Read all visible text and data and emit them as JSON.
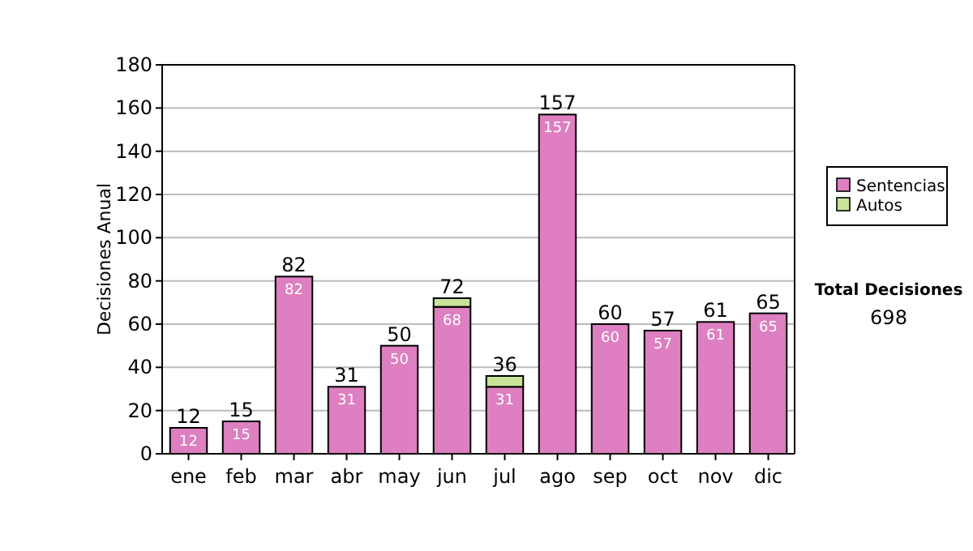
{
  "chart_data": {
    "type": "bar",
    "stacked": true,
    "ylabel": "Decisiones Anual",
    "categories": [
      "ene",
      "feb",
      "mar",
      "abr",
      "may",
      "jun",
      "jul",
      "ago",
      "sep",
      "oct",
      "nov",
      "dic"
    ],
    "series": [
      {
        "name": "Sentencias",
        "color": "#dd7fc0",
        "values": [
          12,
          15,
          82,
          31,
          50,
          68,
          31,
          157,
          60,
          57,
          61,
          65
        ],
        "value_labels": [
          "12",
          "15",
          "82",
          "31",
          "50",
          "68",
          "31",
          "157",
          "60",
          "57",
          "61",
          "65"
        ]
      },
      {
        "name": "Autos",
        "color": "#c7e39a",
        "values": [
          null,
          null,
          null,
          null,
          null,
          4,
          5,
          null,
          null,
          null,
          null,
          null
        ]
      }
    ],
    "totals": [
      "12",
      "15",
      "82",
      "31",
      "50",
      "72",
      "36",
      "157",
      "60",
      "57",
      "61",
      "65"
    ],
    "ylim": [
      0,
      180
    ],
    "yticks": [
      0,
      20,
      40,
      60,
      80,
      100,
      120,
      140,
      160,
      180
    ],
    "grid": "y",
    "legend": "right",
    "annotations": [
      "Total Decisiones",
      "698"
    ]
  }
}
